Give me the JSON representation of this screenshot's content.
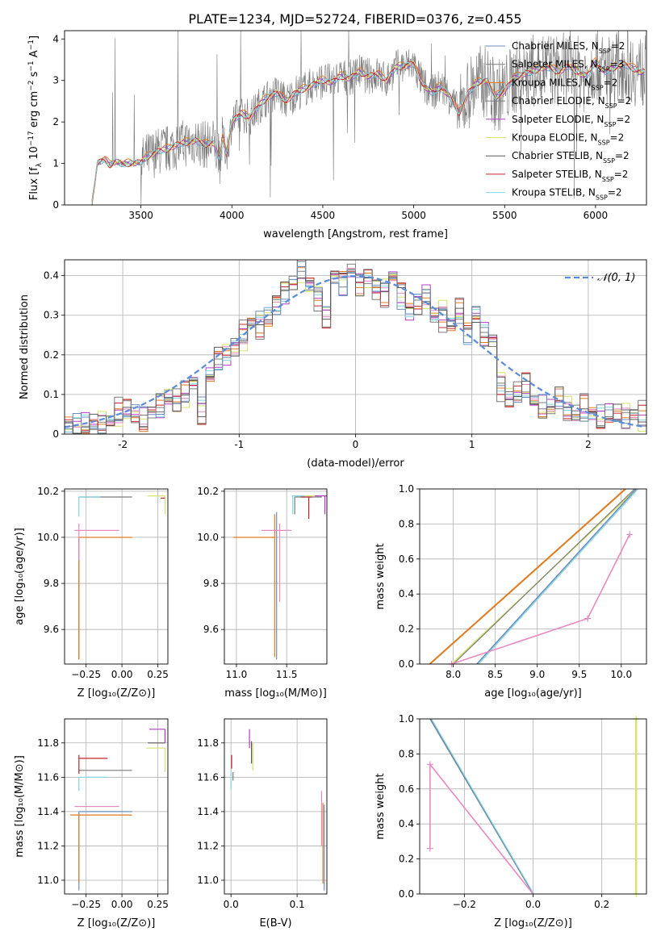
{
  "title": "PLATE=1234, MJD=52724, FIBERID=0376, z=0.455",
  "colors": [
    "#6c8ebf",
    "#7f7f7f",
    "#e07a1f",
    "#7a7a7a",
    "#b23cc3",
    "#d7e36b",
    "#5a5a5a",
    "#c0262d",
    "#7fd6e3",
    "#e989c2"
  ],
  "chart_data": [
    {
      "id": "spectrum",
      "type": "line",
      "title": "PLATE=1234, MJD=52724, FIBERID=0376, z=0.455",
      "xlabel": "wavelength [Angstrom, rest frame]",
      "ylabel": "Flux [f_λ 10^-17 erg cm^-2 s^-1 A^-1]",
      "xlim": [
        3080,
        6280
      ],
      "ylim": [
        0,
        4.2
      ],
      "xticks": [
        3500,
        4000,
        4500,
        5000,
        5500,
        6000
      ],
      "yticks": [
        0,
        1,
        2,
        3,
        4
      ],
      "grid": false,
      "legend": "top-right",
      "legend_entries": [
        {
          "name": "Chabrier MILES, N",
          "sub": "SSP",
          "tail": "=2"
        },
        {
          "name": "Salpeter MILES, N",
          "sub": "SSP",
          "tail": "=3"
        },
        {
          "name": "Kroupa MILES, N",
          "sub": "SSP",
          "tail": "=2"
        },
        {
          "name": "Chabrier ELODIE, N",
          "sub": "SSP",
          "tail": "=2"
        },
        {
          "name": "Salpeter ELODIE, N",
          "sub": "SSP",
          "tail": "=2"
        },
        {
          "name": "Kroupa ELODIE, N",
          "sub": "SSP",
          "tail": "=2"
        },
        {
          "name": "Chabrier STELIB, N",
          "sub": "SSP",
          "tail": "=2"
        },
        {
          "name": "Salpeter STELIB, N",
          "sub": "SSP",
          "tail": "=2"
        },
        {
          "name": "Kroupa STELIB, N",
          "sub": "SSP",
          "tail": "=2"
        }
      ],
      "model_x": [
        3230,
        3260,
        3280,
        3300,
        3330,
        3360,
        3400,
        3450,
        3500,
        3550,
        3600,
        3650,
        3700,
        3750,
        3800,
        3850,
        3900,
        3930,
        3950,
        3970,
        4000,
        4050,
        4100,
        4150,
        4200,
        4250,
        4300,
        4350,
        4400,
        4450,
        4500,
        4550,
        4600,
        4650,
        4700,
        4750,
        4800,
        4850,
        4900,
        4950,
        5000,
        5050,
        5100,
        5150,
        5200,
        5250,
        5300,
        5350,
        5400,
        5450,
        5500,
        5550,
        5600,
        5650,
        5700,
        5750,
        5800,
        5850,
        5900,
        5950,
        6000,
        6050,
        6100,
        6150,
        6200,
        6250
      ],
      "model_y": [
        0.0,
        1.0,
        1.05,
        1.1,
        0.95,
        1.05,
        0.98,
        1.0,
        1.03,
        1.2,
        1.3,
        1.35,
        1.45,
        1.5,
        1.55,
        1.45,
        1.5,
        1.1,
        1.6,
        1.2,
        2.0,
        2.2,
        2.1,
        2.4,
        2.6,
        2.7,
        2.5,
        2.7,
        2.8,
        2.9,
        3.0,
        2.95,
        3.1,
        3.05,
        3.2,
        3.1,
        3.15,
        3.0,
        3.3,
        3.35,
        3.4,
        2.9,
        2.7,
        2.85,
        2.6,
        2.2,
        2.7,
        2.95,
        3.0,
        2.6,
        2.75,
        3.05,
        3.15,
        3.2,
        3.3,
        3.3,
        3.2,
        3.35,
        3.2,
        3.1,
        3.45,
        3.2,
        3.3,
        3.4,
        3.3,
        3.2
      ]
    },
    {
      "id": "residuals",
      "type": "bar",
      "xlabel": "(data-model)/error",
      "ylabel": "Normed distribution",
      "xlim": [
        -2.5,
        2.5
      ],
      "ylim": [
        0,
        0.44
      ],
      "xticks": [
        -2,
        -1,
        0,
        1,
        2
      ],
      "yticks": [
        0.0,
        0.1,
        0.2,
        0.3,
        0.4
      ],
      "grid": true,
      "legend": "top-right",
      "normal_label": "𝒩(0, 1)",
      "bin_width": 0.1,
      "bin_start": -2.5,
      "hist": [
        0.02,
        0.02,
        0.025,
        0.03,
        0.02,
        0.03,
        0.05,
        0.06,
        0.05,
        0.04,
        0.06,
        0.07,
        0.09,
        0.08,
        0.1,
        0.13,
        0.06,
        0.15,
        0.19,
        0.2,
        0.22,
        0.25,
        0.28,
        0.28,
        0.3,
        0.33,
        0.36,
        0.38,
        0.42,
        0.38,
        0.35,
        0.3,
        0.4,
        0.38,
        0.41,
        0.38,
        0.4,
        0.37,
        0.36,
        0.4,
        0.35,
        0.31,
        0.33,
        0.35,
        0.3,
        0.3,
        0.28,
        0.31,
        0.25,
        0.3,
        0.25,
        0.24,
        0.12,
        0.09,
        0.1,
        0.12,
        0.08,
        0.07,
        0.07,
        0.09,
        0.06,
        0.05,
        0.06,
        0.05,
        0.04,
        0.05,
        0.05,
        0.04,
        0.05,
        0.04
      ],
      "offsets": [
        0.0,
        0.015,
        -0.012,
        0.02,
        -0.018,
        0.01,
        -0.008,
        0.025,
        -0.015,
        0.012
      ]
    },
    {
      "id": "age-vs-Z",
      "type": "line",
      "xlabel": "Z [log₁₀(Z/Z⊙)]",
      "ylabel": "age  [log₁₀(age/yr)]",
      "xlim": [
        -0.4,
        0.32
      ],
      "ylim": [
        9.45,
        10.21
      ],
      "xticks": [
        -0.25,
        0.0,
        0.25
      ],
      "xticklabels": [
        "−0.25",
        "0.00",
        "0.25"
      ],
      "yticks": [
        9.6,
        9.8,
        10.0,
        10.2
      ],
      "yticklabels": [
        "9.6",
        "9.8",
        "10.0",
        "10.2"
      ],
      "grid": true,
      "segments": [
        {
          "c": 1,
          "x": [
            -0.3,
            -0.3
          ],
          "y": [
            9.47,
            10.0
          ]
        },
        {
          "c": 2,
          "x": [
            -0.3,
            0.07
          ],
          "y": [
            10.0,
            10.0
          ]
        },
        {
          "c": 2,
          "x": [
            -0.3,
            -0.3
          ],
          "y": [
            9.47,
            10.0
          ]
        },
        {
          "c": 9,
          "x": [
            -0.33,
            -0.02
          ],
          "y": [
            10.03,
            10.03
          ]
        },
        {
          "c": 9,
          "x": [
            -0.3,
            -0.3
          ],
          "y": [
            9.9,
            10.06
          ]
        },
        {
          "c": 3,
          "x": [
            -0.3,
            0.07
          ],
          "y": [
            10.175,
            10.175
          ]
        },
        {
          "c": 8,
          "x": [
            -0.3,
            -0.15
          ],
          "y": [
            10.175,
            10.175
          ]
        },
        {
          "c": 8,
          "x": [
            -0.3,
            -0.3
          ],
          "y": [
            10.09,
            10.175
          ]
        },
        {
          "c": 5,
          "x": [
            0.18,
            0.3
          ],
          "y": [
            10.18,
            10.18
          ]
        },
        {
          "c": 5,
          "x": [
            0.3,
            0.3
          ],
          "y": [
            10.1,
            10.18
          ]
        },
        {
          "c": 7,
          "x": [
            0.27,
            0.3
          ],
          "y": [
            10.17,
            10.17
          ]
        }
      ]
    },
    {
      "id": "age-vs-mass",
      "type": "line",
      "xlabel": "mass [log₁₀(M/M⊙)]",
      "xlim": [
        10.88,
        11.9
      ],
      "ylim": [
        9.45,
        10.21
      ],
      "xticks": [
        11.0,
        11.5
      ],
      "xticklabels": [
        "11.0",
        "11.5"
      ],
      "yticks": [
        9.6,
        9.8,
        10.0,
        10.2
      ],
      "yticklabels": [
        "9.6",
        "9.8",
        "10.0",
        "10.2"
      ],
      "grid": true,
      "segments": [
        {
          "c": 2,
          "x": [
            10.97,
            11.38
          ],
          "y": [
            10.0,
            10.0
          ]
        },
        {
          "c": 2,
          "x": [
            11.38,
            11.38
          ],
          "y": [
            9.48,
            10.1
          ]
        },
        {
          "c": 0,
          "x": [
            11.4,
            11.4
          ],
          "y": [
            9.47,
            10.11
          ]
        },
        {
          "c": 9,
          "x": [
            11.25,
            11.55
          ],
          "y": [
            10.03,
            10.03
          ]
        },
        {
          "c": 9,
          "x": [
            11.43,
            11.43
          ],
          "y": [
            9.72,
            10.06
          ]
        },
        {
          "c": 3,
          "x": [
            11.58,
            11.85
          ],
          "y": [
            10.175,
            10.175
          ]
        },
        {
          "c": 3,
          "x": [
            11.58,
            11.58
          ],
          "y": [
            10.1,
            10.175
          ]
        },
        {
          "c": 8,
          "x": [
            11.55,
            11.7
          ],
          "y": [
            10.18,
            10.18
          ]
        },
        {
          "c": 8,
          "x": [
            11.56,
            11.56
          ],
          "y": [
            10.1,
            10.18
          ]
        },
        {
          "c": 7,
          "x": [
            11.64,
            11.75
          ],
          "y": [
            10.175,
            10.175
          ]
        },
        {
          "c": 7,
          "x": [
            11.72,
            11.72
          ],
          "y": [
            10.08,
            10.175
          ]
        },
        {
          "c": 5,
          "x": [
            11.68,
            11.8
          ],
          "y": [
            10.18,
            10.18
          ]
        },
        {
          "c": 4,
          "x": [
            11.78,
            11.9
          ],
          "y": [
            10.18,
            10.18
          ]
        },
        {
          "c": 4,
          "x": [
            11.88,
            11.88
          ],
          "y": [
            10.1,
            10.18
          ]
        }
      ]
    },
    {
      "id": "mass-weight-vs-age",
      "type": "line",
      "xlabel": "age  [log₁₀(age/yr)]",
      "ylabel": "mass weight",
      "xlim": [
        7.6,
        10.3
      ],
      "ylim": [
        0,
        1
      ],
      "xticks": [
        8.0,
        8.5,
        9.0,
        9.5,
        10.0
      ],
      "xticklabels": [
        "8.0",
        "8.5",
        "9.0",
        "9.5",
        "10.0"
      ],
      "yticks": [
        0.0,
        0.2,
        0.4,
        0.6,
        0.8,
        1.0
      ],
      "yticklabels": [
        "0.0",
        "0.2",
        "0.4",
        "0.6",
        "0.8",
        "1.0"
      ],
      "grid": true,
      "segments": [
        {
          "c": 2,
          "x": [
            7.72,
            10.05
          ],
          "y": [
            0.0,
            1.0
          ],
          "w": 2
        },
        {
          "c": 5,
          "x": [
            7.98,
            10.18
          ],
          "y": [
            0.0,
            1.0
          ],
          "w": 1.6
        },
        {
          "c": 3,
          "x": [
            8.0,
            10.16
          ],
          "y": [
            0.0,
            1.0
          ],
          "w": 1.2
        },
        {
          "c": 0,
          "x": [
            8.28,
            10.18
          ],
          "y": [
            0.0,
            1.0
          ],
          "w": 1.6
        },
        {
          "c": 8,
          "x": [
            8.3,
            10.2
          ],
          "y": [
            0.0,
            1.0
          ],
          "w": 1.2
        },
        {
          "c": 9,
          "x": [
            7.98,
            9.6,
            10.1
          ],
          "y": [
            0.0,
            0.26,
            0.74
          ],
          "w": 1.6,
          "markers": true
        }
      ]
    },
    {
      "id": "mass-vs-Z",
      "type": "line",
      "xlabel": "Z [log₁₀(Z/Z⊙)]",
      "ylabel": "mass [log₁₀(M/M⊙)]",
      "xlim": [
        -0.4,
        0.32
      ],
      "ylim": [
        10.92,
        11.94
      ],
      "xticks": [
        -0.25,
        0.0,
        0.25
      ],
      "xticklabels": [
        "−0.25",
        "0.00",
        "0.25"
      ],
      "yticks": [
        11.0,
        11.2,
        11.4,
        11.6,
        11.8
      ],
      "yticklabels": [
        "11.0",
        "11.2",
        "11.4",
        "11.6",
        "11.8"
      ],
      "grid": true,
      "segments": [
        {
          "c": 0,
          "x": [
            -0.3,
            0.07
          ],
          "y": [
            11.4,
            11.4
          ]
        },
        {
          "c": 0,
          "x": [
            -0.3,
            -0.3
          ],
          "y": [
            10.94,
            11.4
          ]
        },
        {
          "c": 2,
          "x": [
            -0.36,
            0.07
          ],
          "y": [
            11.38,
            11.38
          ]
        },
        {
          "c": 2,
          "x": [
            -0.3,
            -0.3
          ],
          "y": [
            10.99,
            11.38
          ]
        },
        {
          "c": 9,
          "x": [
            -0.33,
            -0.02
          ],
          "y": [
            11.43,
            11.43
          ]
        },
        {
          "c": 3,
          "x": [
            -0.3,
            0.07
          ],
          "y": [
            11.64,
            11.64
          ]
        },
        {
          "c": 8,
          "x": [
            -0.3,
            -0.1
          ],
          "y": [
            11.6,
            11.6
          ]
        },
        {
          "c": 8,
          "x": [
            -0.3,
            -0.3
          ],
          "y": [
            11.52,
            11.6
          ]
        },
        {
          "c": 7,
          "x": [
            -0.3,
            -0.1
          ],
          "y": [
            11.71,
            11.71
          ]
        },
        {
          "c": 7,
          "x": [
            -0.3,
            -0.3
          ],
          "y": [
            11.62,
            11.73
          ]
        },
        {
          "c": 4,
          "x": [
            0.19,
            0.3
          ],
          "y": [
            11.88,
            11.88
          ]
        },
        {
          "c": 4,
          "x": [
            0.3,
            0.3
          ],
          "y": [
            11.8,
            11.88
          ]
        },
        {
          "c": 5,
          "x": [
            0.17,
            0.3
          ],
          "y": [
            11.77,
            11.77
          ]
        },
        {
          "c": 5,
          "x": [
            0.3,
            0.3
          ],
          "y": [
            11.63,
            11.77
          ]
        },
        {
          "c": 6,
          "x": [
            0.18,
            0.3
          ],
          "y": [
            11.8,
            11.8
          ]
        }
      ]
    },
    {
      "id": "mass-vs-EBV",
      "type": "line",
      "xlabel": "E(B-V)",
      "xlim": [
        -0.01,
        0.145
      ],
      "ylim": [
        10.92,
        11.94
      ],
      "xticks": [
        0.0,
        0.1
      ],
      "xticklabels": [
        "0.0",
        "0.1"
      ],
      "yticks": [
        11.0,
        11.2,
        11.4,
        11.6,
        11.8
      ],
      "yticklabels": [
        "11.0",
        "11.2",
        "11.4",
        "11.6",
        "11.8"
      ],
      "grid": true,
      "segments": [
        {
          "c": 7,
          "x": [
            0.001,
            0.001
          ],
          "y": [
            11.65,
            11.73
          ]
        },
        {
          "c": 8,
          "x": [
            0.0,
            0.0
          ],
          "y": [
            11.53,
            11.64
          ]
        },
        {
          "c": 3,
          "x": [
            0.003,
            0.003
          ],
          "y": [
            11.58,
            11.63
          ]
        },
        {
          "c": 4,
          "x": [
            0.028,
            0.028
          ],
          "y": [
            11.77,
            11.88
          ]
        },
        {
          "c": 5,
          "x": [
            0.033,
            0.033
          ],
          "y": [
            11.64,
            11.8
          ]
        },
        {
          "c": 6,
          "x": [
            0.031,
            0.031
          ],
          "y": [
            11.68,
            11.81
          ]
        },
        {
          "c": 9,
          "x": [
            0.137,
            0.137
          ],
          "y": [
            11.2,
            11.52
          ]
        },
        {
          "c": 2,
          "x": [
            0.139,
            0.139
          ],
          "y": [
            10.98,
            11.45
          ]
        },
        {
          "c": 0,
          "x": [
            0.141,
            0.141
          ],
          "y": [
            10.94,
            11.44
          ]
        }
      ]
    },
    {
      "id": "mass-weight-vs-Z",
      "type": "line",
      "xlabel": "Z [log₁₀(Z/Z⊙)]",
      "ylabel": "mass weight",
      "xlim": [
        -0.33,
        0.33
      ],
      "ylim": [
        0,
        1
      ],
      "xticks": [
        -0.2,
        0.0,
        0.2
      ],
      "xticklabels": [
        "−0.2",
        "0.0",
        "0.2"
      ],
      "yticks": [
        0.0,
        0.2,
        0.4,
        0.6,
        0.8,
        1.0
      ],
      "yticklabels": [
        "0.0",
        "0.2",
        "0.4",
        "0.6",
        "0.8",
        "1.0"
      ],
      "grid": true,
      "segments": [
        {
          "c": 0,
          "x": [
            -0.3,
            0.0
          ],
          "y": [
            1.0,
            0.0
          ],
          "w": 1.4
        },
        {
          "c": 3,
          "x": [
            -0.298,
            0.001
          ],
          "y": [
            1.0,
            0.0
          ],
          "w": 1.2
        },
        {
          "c": 8,
          "x": [
            -0.296,
            0.002
          ],
          "y": [
            1.0,
            0.0
          ],
          "w": 1.2
        },
        {
          "c": 9,
          "x": [
            -0.3,
            0.0
          ],
          "y": [
            0.74,
            0.0
          ],
          "w": 1.6
        },
        {
          "c": 9,
          "x": [
            -0.3,
            -0.3
          ],
          "y": [
            0.26,
            0.74
          ],
          "w": 1.6,
          "markers": true
        },
        {
          "c": 5,
          "x": [
            0.3,
            0.3
          ],
          "y": [
            0.0,
            1.0
          ],
          "w": 2.4,
          "markers": true
        }
      ]
    }
  ]
}
